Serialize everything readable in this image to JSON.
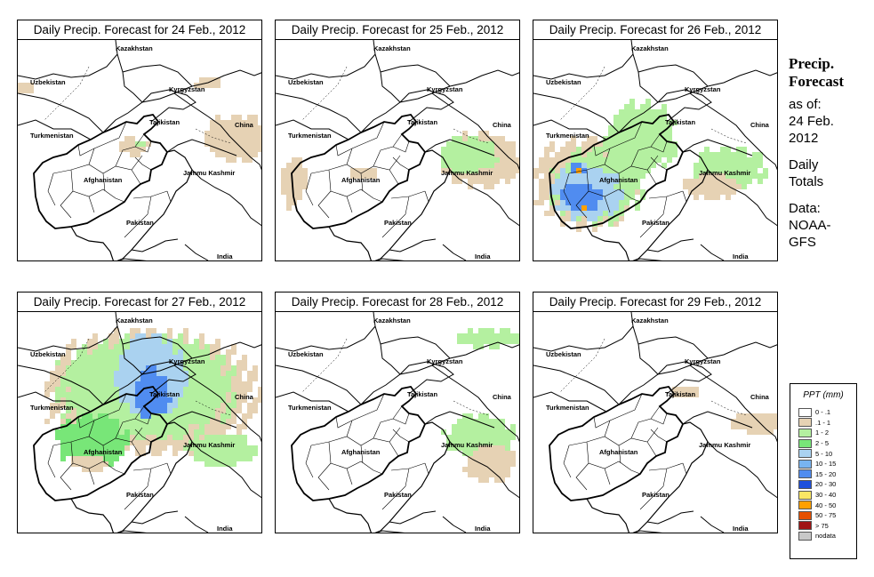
{
  "panels": [
    {
      "title": "Daily Precip. Forecast for  24 Feb., 2012",
      "day": "24 Feb."
    },
    {
      "title": "Daily Precip. Forecast for  25 Feb., 2012",
      "day": "25 Feb."
    },
    {
      "title": "Daily Precip. Forecast for  26 Feb., 2012",
      "day": "26 Feb."
    },
    {
      "title": "Daily Precip. Forecast for  27 Feb., 2012",
      "day": "27 Feb."
    },
    {
      "title": "Daily Precip. Forecast for  28 Feb., 2012",
      "day": "28 Feb."
    },
    {
      "title": "Daily Precip. Forecast for  29 Feb., 2012",
      "day": "29 Feb."
    }
  ],
  "map_labels": {
    "kazakhstan": "Kazakhstan",
    "uzbekistan": "Uzbekistan",
    "kyrgyzstan": "Kyrgyzstan",
    "tajikistan": "Tajikistan",
    "turkmenistan": "Turkmenistan",
    "china": "China",
    "jammu_kashmir": "Jammu Kashmir",
    "afghanistan": "Afghanistan",
    "pakistan": "Pakistan",
    "india": "India"
  },
  "sidebar": {
    "heading_line1": "Precip.",
    "heading_line2": "Forecast",
    "asof_line1": "as of:",
    "asof_line2": "24 Feb.",
    "asof_line3": "2012",
    "totals_line1": "Daily",
    "totals_line2": "Totals",
    "data_line1": "Data:",
    "data_line2": "NOAA-",
    "data_line3": "GFS"
  },
  "legend": {
    "title": "PPT (mm)",
    "items": [
      {
        "label": "0 - .1",
        "color": "#ffffff"
      },
      {
        "label": ".1 - 1",
        "color": "#e6d2b4"
      },
      {
        "label": "1 - 2",
        "color": "#b4f0a0"
      },
      {
        "label": "2 - 5",
        "color": "#78e678"
      },
      {
        "label": "5 - 10",
        "color": "#aad2f0"
      },
      {
        "label": "10 - 15",
        "color": "#78b4f0"
      },
      {
        "label": "15 - 20",
        "color": "#508cf0"
      },
      {
        "label": "20 - 30",
        "color": "#1e50dc"
      },
      {
        "label": "30 - 40",
        "color": "#fae664"
      },
      {
        "label": "40 - 50",
        "color": "#ffa000"
      },
      {
        "label": "50 - 75",
        "color": "#e65000"
      },
      {
        "label": "> 75",
        "color": "#a01414"
      },
      {
        "label": "nodata",
        "color": "#c8c8c8"
      }
    ]
  },
  "precip_fields": [
    {
      "day": "24 Feb.",
      "areas": [
        {
          "cx": 250,
          "cy": 110,
          "rx": 40,
          "ry": 26,
          "level": 1
        },
        {
          "cx": 130,
          "cy": 120,
          "rx": 18,
          "ry": 10,
          "level": 1
        },
        {
          "cx": 140,
          "cy": 118,
          "rx": 8,
          "ry": 5,
          "level": 2
        },
        {
          "cx": 10,
          "cy": 55,
          "rx": 10,
          "ry": 8,
          "level": 1
        },
        {
          "cx": 215,
          "cy": 50,
          "rx": 14,
          "ry": 6,
          "level": 1
        }
      ]
    },
    {
      "day": "25 Feb.",
      "areas": [
        {
          "cx": 230,
          "cy": 135,
          "rx": 44,
          "ry": 30,
          "level": 1
        },
        {
          "cx": 215,
          "cy": 130,
          "rx": 34,
          "ry": 20,
          "level": 2
        },
        {
          "cx": 20,
          "cy": 160,
          "rx": 14,
          "ry": 30,
          "level": 1
        },
        {
          "cx": 100,
          "cy": 150,
          "rx": 16,
          "ry": 8,
          "level": 1
        }
      ]
    },
    {
      "day": "26 Feb.",
      "areas": [
        {
          "cx": 60,
          "cy": 160,
          "rx": 58,
          "ry": 50,
          "level": 1
        },
        {
          "cx": 70,
          "cy": 165,
          "rx": 52,
          "ry": 40,
          "level": 2
        },
        {
          "cx": 60,
          "cy": 172,
          "rx": 38,
          "ry": 30,
          "level": 4
        },
        {
          "cx": 55,
          "cy": 178,
          "rx": 22,
          "ry": 16,
          "level": 6
        },
        {
          "cx": 52,
          "cy": 145,
          "rx": 8,
          "ry": 6,
          "level": 6
        },
        {
          "cx": 52,
          "cy": 145,
          "rx": 3,
          "ry": 3,
          "level": 9
        },
        {
          "cx": 58,
          "cy": 188,
          "rx": 3,
          "ry": 3,
          "level": 9
        },
        {
          "cx": 120,
          "cy": 110,
          "rx": 40,
          "ry": 40,
          "level": 2
        },
        {
          "cx": 220,
          "cy": 145,
          "rx": 40,
          "ry": 24,
          "level": 2
        },
        {
          "cx": 200,
          "cy": 165,
          "rx": 30,
          "ry": 14,
          "level": 1
        }
      ]
    },
    {
      "day": "27 Feb.",
      "areas": [
        {
          "cx": 150,
          "cy": 90,
          "rx": 120,
          "ry": 70,
          "level": 1
        },
        {
          "cx": 145,
          "cy": 85,
          "rx": 100,
          "ry": 58,
          "level": 2
        },
        {
          "cx": 150,
          "cy": 70,
          "rx": 40,
          "ry": 45,
          "level": 4
        },
        {
          "cx": 150,
          "cy": 90,
          "rx": 20,
          "ry": 28,
          "level": 6
        },
        {
          "cx": 85,
          "cy": 145,
          "rx": 40,
          "ry": 30,
          "level": 3
        },
        {
          "cx": 80,
          "cy": 170,
          "rx": 20,
          "ry": 10,
          "level": 1
        },
        {
          "cx": 230,
          "cy": 155,
          "rx": 40,
          "ry": 18,
          "level": 2
        }
      ]
    },
    {
      "day": "28 Feb.",
      "areas": [
        {
          "cx": 230,
          "cy": 140,
          "rx": 40,
          "ry": 24,
          "level": 2
        },
        {
          "cx": 240,
          "cy": 170,
          "rx": 30,
          "ry": 20,
          "level": 1
        },
        {
          "cx": 240,
          "cy": 30,
          "rx": 40,
          "ry": 10,
          "level": 2
        }
      ]
    },
    {
      "day": "29 Feb.",
      "areas": [
        {
          "cx": 250,
          "cy": 125,
          "rx": 30,
          "ry": 12,
          "level": 1
        },
        {
          "cx": 170,
          "cy": 90,
          "rx": 14,
          "ry": 6,
          "level": 1
        }
      ]
    }
  ]
}
